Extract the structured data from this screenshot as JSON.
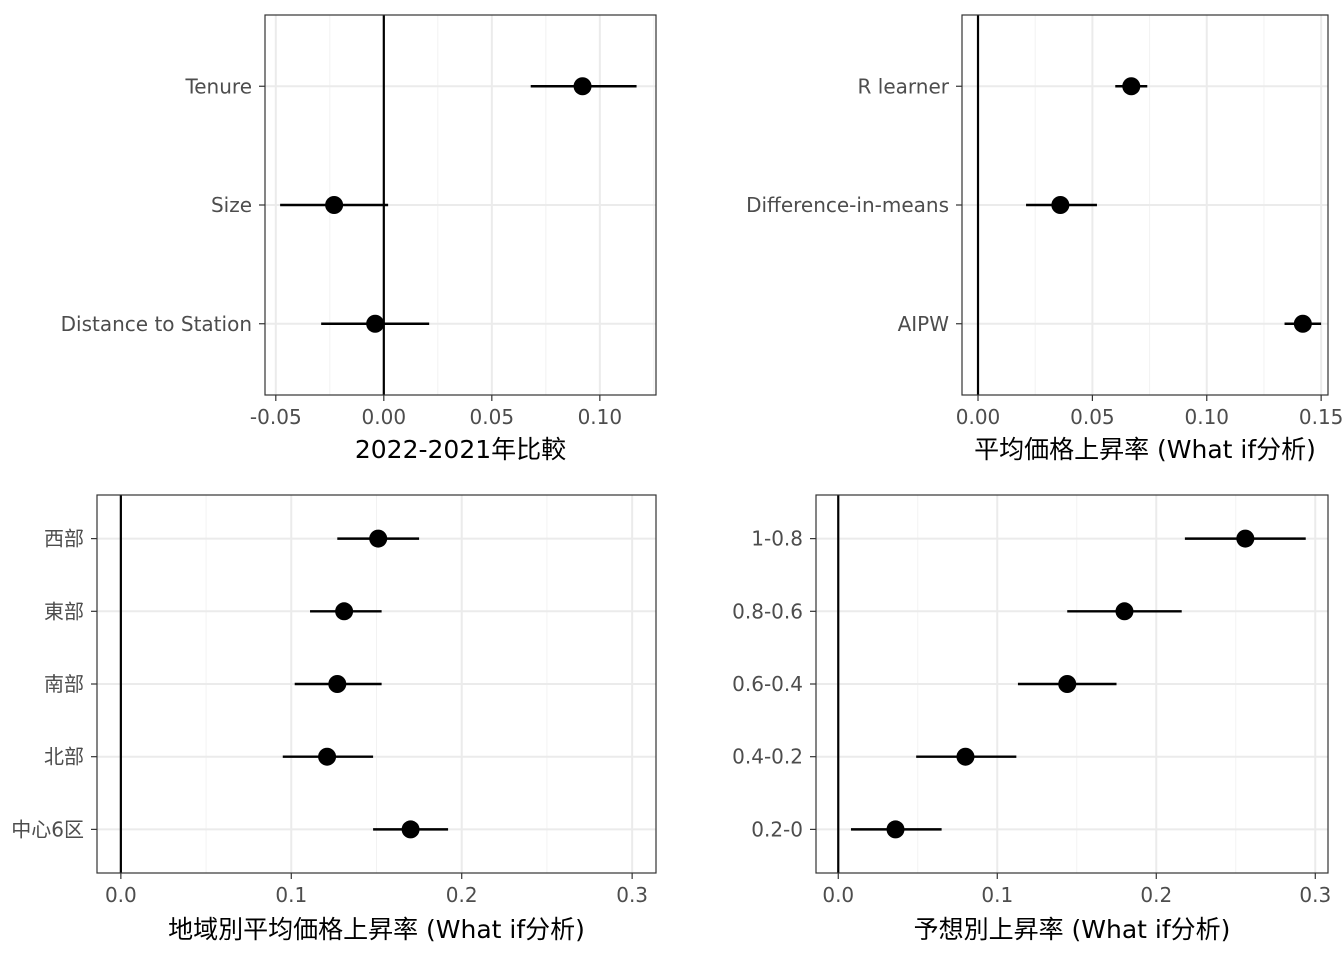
{
  "chart_data": [
    {
      "type": "scatter",
      "subtype": "pointrange",
      "xlabel": "2022-2021年比較",
      "xlim": [
        -0.055,
        0.126
      ],
      "xticks": [
        -0.05,
        0.0,
        0.05,
        0.1
      ],
      "xtick_labels": [
        "-0.05",
        "0.00",
        "0.05",
        "0.10"
      ],
      "zero_line": 0,
      "grid": true,
      "categories": [
        "Tenure",
        "Size",
        "Distance to Station"
      ],
      "points": [
        {
          "label": "Tenure",
          "value": 0.092,
          "low": 0.068,
          "high": 0.117
        },
        {
          "label": "Size",
          "value": -0.023,
          "low": -0.048,
          "high": 0.002
        },
        {
          "label": "Distance to Station",
          "value": -0.004,
          "low": -0.029,
          "high": 0.021
        }
      ]
    },
    {
      "type": "scatter",
      "subtype": "pointrange",
      "xlabel": "平均価格上昇率 (What if分析)",
      "xlim": [
        -0.007,
        0.153
      ],
      "xticks": [
        0.0,
        0.05,
        0.1,
        0.15
      ],
      "xtick_labels": [
        "0.00",
        "0.05",
        "0.10",
        "0.15"
      ],
      "zero_line": 0,
      "grid": true,
      "categories": [
        "R learner",
        "Difference-in-means",
        "AIPW"
      ],
      "points": [
        {
          "label": "R learner",
          "value": 0.067,
          "low": 0.06,
          "high": 0.074
        },
        {
          "label": "Difference-in-means",
          "value": 0.036,
          "low": 0.021,
          "high": 0.052
        },
        {
          "label": "AIPW",
          "value": 0.142,
          "low": 0.134,
          "high": 0.15
        }
      ]
    },
    {
      "type": "scatter",
      "subtype": "pointrange",
      "xlabel": "地域別平均価格上昇率 (What if分析)",
      "xlim": [
        -0.014,
        0.314
      ],
      "xticks": [
        0.0,
        0.1,
        0.2,
        0.3
      ],
      "xtick_labels": [
        "0.0",
        "0.1",
        "0.2",
        "0.3"
      ],
      "zero_line": 0,
      "grid": true,
      "categories": [
        "西部",
        "東部",
        "南部",
        "北部",
        "中心6区"
      ],
      "points": [
        {
          "label": "西部",
          "value": 0.151,
          "low": 0.127,
          "high": 0.175
        },
        {
          "label": "東部",
          "value": 0.131,
          "low": 0.111,
          "high": 0.153
        },
        {
          "label": "南部",
          "value": 0.127,
          "low": 0.102,
          "high": 0.153
        },
        {
          "label": "北部",
          "value": 0.121,
          "low": 0.095,
          "high": 0.148
        },
        {
          "label": "中心6区",
          "value": 0.17,
          "low": 0.148,
          "high": 0.192
        }
      ]
    },
    {
      "type": "scatter",
      "subtype": "pointrange",
      "xlabel": "予想別上昇率 (What if分析)",
      "xlim": [
        -0.014,
        0.308
      ],
      "xticks": [
        0.0,
        0.1,
        0.2,
        0.3
      ],
      "xtick_labels": [
        "0.0",
        "0.1",
        "0.2",
        "0.3"
      ],
      "zero_line": 0,
      "grid": true,
      "categories": [
        "1-0.8",
        "0.8-0.6",
        "0.6-0.4",
        "0.4-0.2",
        "0.2-0"
      ],
      "points": [
        {
          "label": "1-0.8",
          "value": 0.256,
          "low": 0.218,
          "high": 0.294
        },
        {
          "label": "0.8-0.6",
          "value": 0.18,
          "low": 0.144,
          "high": 0.216
        },
        {
          "label": "0.6-0.4",
          "value": 0.144,
          "low": 0.113,
          "high": 0.175
        },
        {
          "label": "0.4-0.2",
          "value": 0.08,
          "low": 0.049,
          "high": 0.112
        },
        {
          "label": "0.2-0",
          "value": 0.036,
          "low": 0.008,
          "high": 0.065
        }
      ]
    }
  ]
}
